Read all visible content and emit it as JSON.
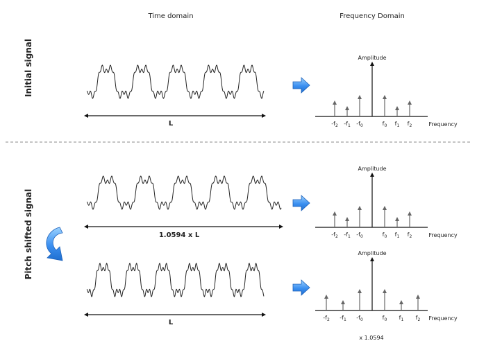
{
  "headers": {
    "time": "Time domain",
    "freq": "Frequency Domain"
  },
  "row_labels": {
    "initial": "Initial signal",
    "pitch": "Pitch shifted signal"
  },
  "length_labels": {
    "a": "L",
    "b": "1.0594 x L",
    "c": "L"
  },
  "spectrum_labels": {
    "amplitude": "Amplitude",
    "frequency": "Frequency",
    "scale_note": "x 1.0594"
  },
  "freq_ticks": [
    {
      "base": "-f",
      "sub": "2"
    },
    {
      "base": "-f",
      "sub": "1"
    },
    {
      "base": "-f",
      "sub": "0"
    },
    {
      "base": "f",
      "sub": "0"
    },
    {
      "base": "f",
      "sub": "1"
    },
    {
      "base": "f",
      "sub": "2"
    }
  ],
  "spectrum_magnitudes": [
    0.5,
    0.3,
    0.7,
    0.7,
    0.3,
    0.5
  ],
  "colors": {
    "arrow_blue": "#2f86e6",
    "arrow_light": "#8cc8ff",
    "line": "#111111",
    "stem": "#666666",
    "divider": "#888888"
  },
  "icons": {
    "process_arrow": "right-arrow-icon",
    "shift_arrow": "curved-arrow-icon"
  }
}
